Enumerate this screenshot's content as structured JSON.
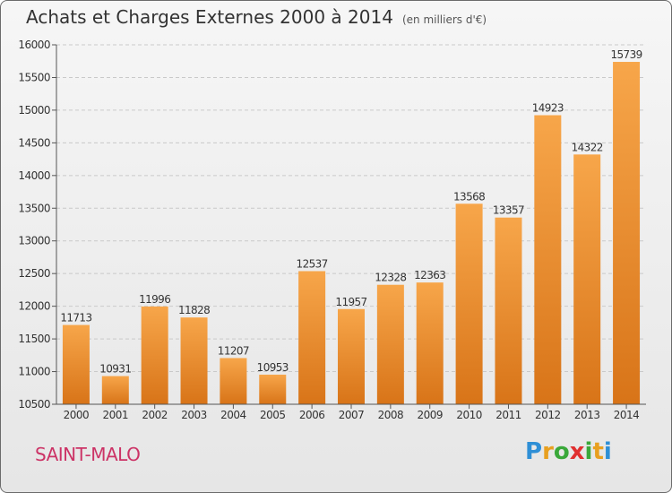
{
  "header": {
    "title": "Achats et Charges Externes 2000 à 2014",
    "unit": "(en milliers d'€)"
  },
  "footer": {
    "city": "SAINT-MALO",
    "logo": {
      "letters": [
        "P",
        "r",
        "o",
        "x",
        "i",
        "t",
        "i"
      ],
      "colors": [
        "#2e8fd6",
        "#e8a020",
        "#3aa83a",
        "#e03030",
        "#3aa83a",
        "#e8a020",
        "#2e8fd6"
      ]
    }
  },
  "chart_data": {
    "type": "bar",
    "categories": [
      "2000",
      "2001",
      "2002",
      "2003",
      "2004",
      "2005",
      "2006",
      "2007",
      "2008",
      "2009",
      "2010",
      "2011",
      "2012",
      "2013",
      "2014"
    ],
    "values": [
      11713,
      10931,
      11996,
      11828,
      11207,
      10953,
      12537,
      11957,
      12328,
      12363,
      13568,
      13357,
      14923,
      14322,
      15739
    ],
    "ylim": [
      10500,
      16000
    ],
    "yticks": [
      10500,
      11000,
      11500,
      12000,
      12500,
      13000,
      13500,
      14000,
      14500,
      15000,
      15500,
      16000
    ],
    "grid": true,
    "bar_color": "#f0952e"
  }
}
